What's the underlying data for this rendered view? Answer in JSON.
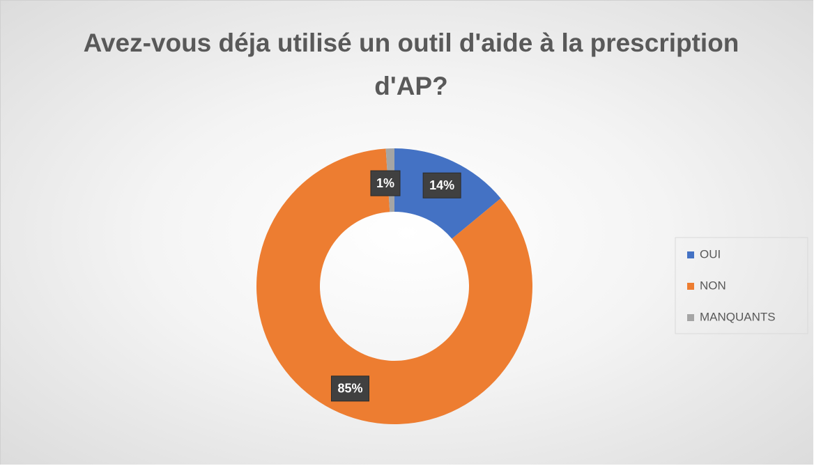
{
  "chart_data": {
    "type": "donut",
    "title": "Avez-vous déja utilisé un outil d'aide à la prescription d'AP?",
    "categories": [
      "OUI",
      "NON",
      "MANQUANTS"
    ],
    "values": [
      14,
      85,
      1
    ],
    "value_labels": [
      "14%",
      "85%",
      "1%"
    ],
    "colors": [
      "#4472c4",
      "#ed7d31",
      "#a5a5a5"
    ],
    "legend": "right"
  }
}
